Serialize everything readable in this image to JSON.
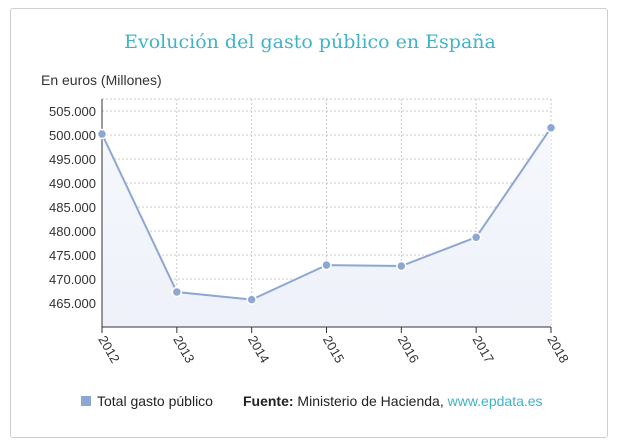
{
  "chart_data": {
    "type": "area",
    "title": "Evolución del gasto público en España",
    "ylabel": "En euros (Millones)",
    "xlabel": "",
    "categories": [
      "2012",
      "2013",
      "2014",
      "2015",
      "2016",
      "2017",
      "2018"
    ],
    "series": [
      {
        "name": "Total gasto público",
        "values": [
          500200,
          467300,
          465700,
          472900,
          472700,
          478700,
          501500
        ]
      }
    ],
    "yticks": [
      465000,
      470000,
      475000,
      480000,
      485000,
      490000,
      495000,
      500000,
      505000
    ],
    "yticks_labels": [
      "465.000",
      "470.000",
      "475.000",
      "480.000",
      "485.000",
      "490.000",
      "495.000",
      "500.000",
      "505.000"
    ],
    "ylim": [
      460000,
      507500
    ],
    "grid": true,
    "legend_position": "bottom",
    "colors": {
      "line": "#8ea6d3",
      "fill": "#eef1f9",
      "title": "#3fb3c8",
      "grid": "#c8c8c8"
    }
  },
  "footer": {
    "source_label": "Fuente:",
    "source_text": "Ministerio de Hacienda,",
    "source_link": "www.epdata.es"
  }
}
